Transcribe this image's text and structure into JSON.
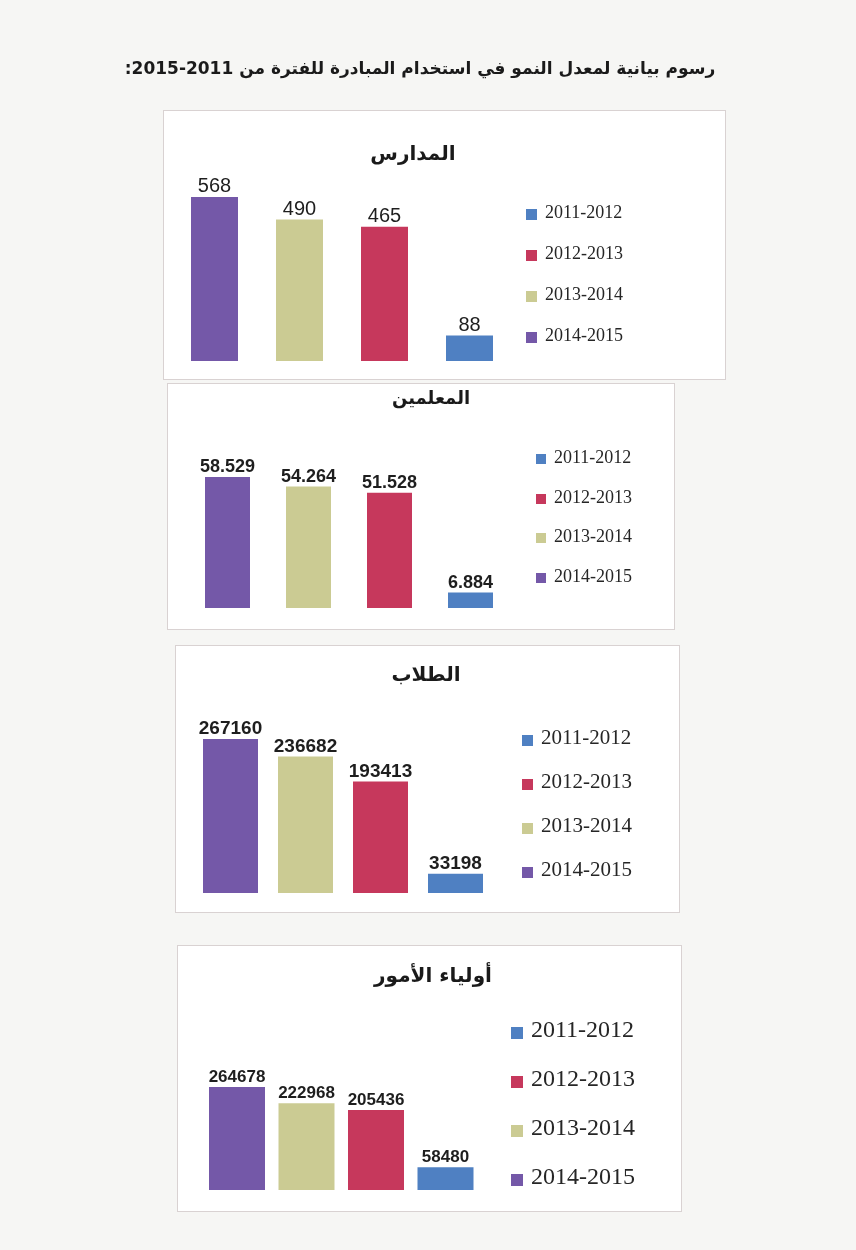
{
  "chart_data": [
    {
      "type": "bar",
      "title": "المدارس",
      "annotations": [
        "رسوم بيانية لمعدل النمو في استخدام المبادرة للفترة من 2011-2015:"
      ],
      "categories": [
        null,
        null,
        null,
        null
      ],
      "stacked": true,
      "series": [
        {
          "name": "2011-2012",
          "color": "#4f80c2",
          "values": [
            null,
            null,
            null,
            88
          ]
        },
        {
          "name": "2012-2013",
          "color": "#c6385c",
          "values": [
            null,
            null,
            465,
            null
          ]
        },
        {
          "name": "2013-2014",
          "color": "#cbcb93",
          "values": [
            null,
            490,
            null,
            null
          ]
        },
        {
          "name": "2014-2015",
          "color": "#7458a8",
          "values": [
            568,
            null,
            null,
            null
          ]
        }
      ],
      "data_labels": true,
      "legend": "right",
      "tick_labels": false
    },
    {
      "type": "bar",
      "title": "المعلمين",
      "categories": [
        null,
        null,
        null,
        null
      ],
      "stacked": true,
      "series": [
        {
          "name": "2011-2012",
          "color": "#4f80c2",
          "values": [
            null,
            null,
            null,
            6.884
          ]
        },
        {
          "name": "2012-2013",
          "color": "#c6385c",
          "values": [
            null,
            null,
            51.528,
            null
          ]
        },
        {
          "name": "2013-2014",
          "color": "#cbcb93",
          "values": [
            null,
            54.264,
            null,
            null
          ]
        },
        {
          "name": "2014-2015",
          "color": "#7458a8",
          "values": [
            58.529,
            null,
            null,
            null
          ]
        }
      ],
      "data_labels": true,
      "legend": "right",
      "tick_labels": false
    },
    {
      "type": "bar",
      "title": "الطلاب",
      "categories": [
        null,
        null,
        null,
        null
      ],
      "stacked": true,
      "series": [
        {
          "name": "2011-2012",
          "color": "#4f80c2",
          "values": [
            null,
            null,
            null,
            33198
          ]
        },
        {
          "name": "2012-2013",
          "color": "#c6385c",
          "values": [
            null,
            null,
            193413,
            null
          ]
        },
        {
          "name": "2013-2014",
          "color": "#cbcb93",
          "values": [
            null,
            236682,
            null,
            null
          ]
        },
        {
          "name": "2014-2015",
          "color": "#7458a8",
          "values": [
            267160,
            null,
            null,
            null
          ]
        }
      ],
      "data_labels": true,
      "legend": "right",
      "tick_labels": false
    },
    {
      "type": "bar",
      "title": "أولياء الأمور",
      "categories": [
        null,
        null,
        null,
        null
      ],
      "stacked": true,
      "series": [
        {
          "name": "2011-2012",
          "color": "#4f80c2",
          "values": [
            null,
            null,
            null,
            58480
          ]
        },
        {
          "name": "2012-2013",
          "color": "#c6385c",
          "values": [
            null,
            null,
            205436,
            null
          ]
        },
        {
          "name": "2013-2014",
          "color": "#cbcb93",
          "values": [
            null,
            222968,
            null,
            null
          ]
        },
        {
          "name": "2014-2015",
          "color": "#7458a8",
          "values": [
            264678,
            null,
            null,
            null
          ]
        }
      ],
      "data_labels": true,
      "legend": "right",
      "tick_labels": false
    }
  ]
}
